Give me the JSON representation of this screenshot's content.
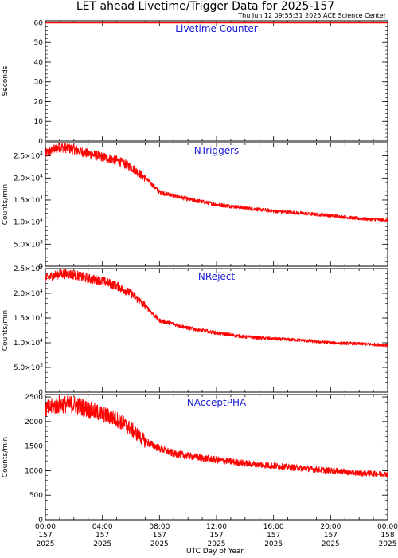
{
  "title": "LET ahead Livetime/Trigger Data for 2025-157",
  "timestamp": "Thu Jun 12 09:55:31 2025 ACE Science Center",
  "colors": {
    "series": "#ff0000",
    "panel_title": "#1a1ad6",
    "axis": "#000000"
  },
  "chart_data": {
    "type": "line",
    "xlabel": "UTC Day of Year",
    "x_ticks": [
      {
        "time": "00:00",
        "doy": "157",
        "year": "2025"
      },
      {
        "time": "04:00",
        "doy": "157",
        "year": "2025"
      },
      {
        "time": "08:00",
        "doy": "157",
        "year": "2025"
      },
      {
        "time": "12:00",
        "doy": "157",
        "year": "2025"
      },
      {
        "time": "16:00",
        "doy": "157",
        "year": "2025"
      },
      {
        "time": "20:00",
        "doy": "157",
        "year": "2025"
      },
      {
        "time": "00:00",
        "doy": "158",
        "year": "2025"
      }
    ],
    "xlim_hours": [
      0,
      24
    ],
    "panels": [
      {
        "title": "Livetime Counter",
        "ylabel": "Seconds",
        "ylim": [
          0,
          61
        ],
        "yticks": [
          0,
          10,
          20,
          30,
          40,
          50,
          60
        ],
        "ytick_labels": [
          "0",
          "10",
          "20",
          "30",
          "40",
          "50",
          "60"
        ],
        "x": [
          0,
          24
        ],
        "y": [
          60,
          60
        ]
      },
      {
        "title": "NTriggers",
        "ylabel": "Counts/min",
        "ylim": [
          0,
          28000
        ],
        "yticks": [
          0,
          5000,
          10000,
          15000,
          20000,
          25000
        ],
        "ytick_labels": [
          {
            "base": "0",
            "exp": ""
          },
          {
            "base": "5.0×10",
            "exp": "3"
          },
          {
            "base": "1.0×10",
            "exp": "4"
          },
          {
            "base": "1.5×10",
            "exp": "4"
          },
          {
            "base": "2.0×10",
            "exp": "4"
          },
          {
            "base": "2.5×10",
            "exp": "4"
          }
        ],
        "x": [
          0,
          1,
          2,
          3,
          4,
          5,
          6,
          7,
          7.5,
          8,
          9,
          10,
          12,
          14,
          16,
          18,
          20,
          22,
          24
        ],
        "y": [
          25500,
          27000,
          26500,
          25500,
          24800,
          24000,
          22500,
          20000,
          18500,
          16800,
          16000,
          15200,
          14000,
          13200,
          12500,
          12000,
          11500,
          10800,
          10400
        ],
        "noise": 700
      },
      {
        "title": "NReject",
        "ylabel": "Counts/min",
        "ylim": [
          0,
          25000
        ],
        "yticks": [
          0,
          5000,
          10000,
          15000,
          20000,
          25000
        ],
        "ytick_labels": [
          {
            "base": "0",
            "exp": ""
          },
          {
            "base": "5.0×10",
            "exp": "3"
          },
          {
            "base": "1.0×10",
            "exp": "4"
          },
          {
            "base": "1.5×10",
            "exp": "4"
          },
          {
            "base": "2.0×10",
            "exp": "4"
          },
          {
            "base": "2.5×10",
            "exp": "4"
          }
        ],
        "x": [
          0,
          1,
          2,
          3,
          4,
          5,
          6,
          7,
          7.5,
          8,
          9,
          10,
          12,
          14,
          16,
          18,
          20,
          22,
          24
        ],
        "y": [
          23000,
          24000,
          23800,
          23000,
          22500,
          21500,
          20000,
          17500,
          16000,
          14500,
          13800,
          13000,
          12000,
          11200,
          10800,
          10500,
          10000,
          9800,
          9500
        ],
        "noise": 600
      },
      {
        "title": "NAcceptPHA",
        "ylabel": "Counts/min",
        "ylim": [
          0,
          2550
        ],
        "yticks": [
          0,
          500,
          1000,
          1500,
          2000,
          2500
        ],
        "ytick_labels": [
          "0",
          "500",
          "1000",
          "1500",
          "2000",
          "2500"
        ],
        "x": [
          0,
          1,
          2,
          3,
          4,
          5,
          6,
          7,
          8,
          9,
          10,
          12,
          14,
          16,
          18,
          20,
          22,
          24
        ],
        "y": [
          2250,
          2350,
          2350,
          2250,
          2150,
          2050,
          1850,
          1600,
          1450,
          1350,
          1300,
          1220,
          1150,
          1100,
          1050,
          1000,
          950,
          930
        ],
        "noise": 110
      }
    ]
  }
}
